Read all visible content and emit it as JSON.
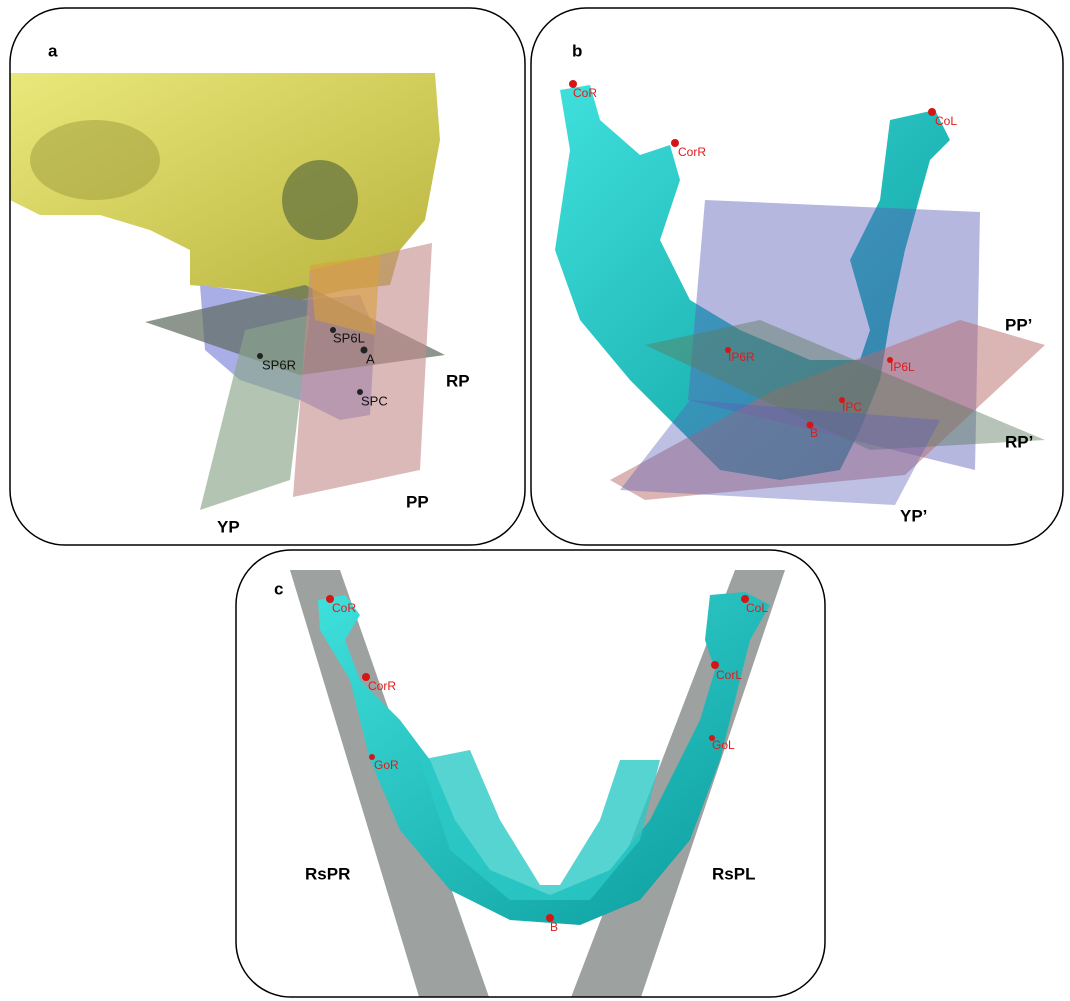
{
  "panels": [
    {
      "label": "a",
      "planes": [
        "YP",
        "PP",
        "RP"
      ],
      "landmarks": [
        "SP6L",
        "SP6R",
        "A",
        "SPC"
      ]
    },
    {
      "label": "b",
      "planes": [
        "PP’",
        "RP’",
        "YP’"
      ],
      "landmarks": [
        "CoR",
        "CorR",
        "CoL",
        "IP6R",
        "IP6L",
        "IPC",
        "B"
      ]
    },
    {
      "label": "c",
      "planes": [
        "RsPR",
        "RsPL"
      ],
      "landmarks": [
        "CoR",
        "CorR",
        "GoR",
        "CoL",
        "CorL",
        "GoL",
        "B"
      ]
    }
  ]
}
